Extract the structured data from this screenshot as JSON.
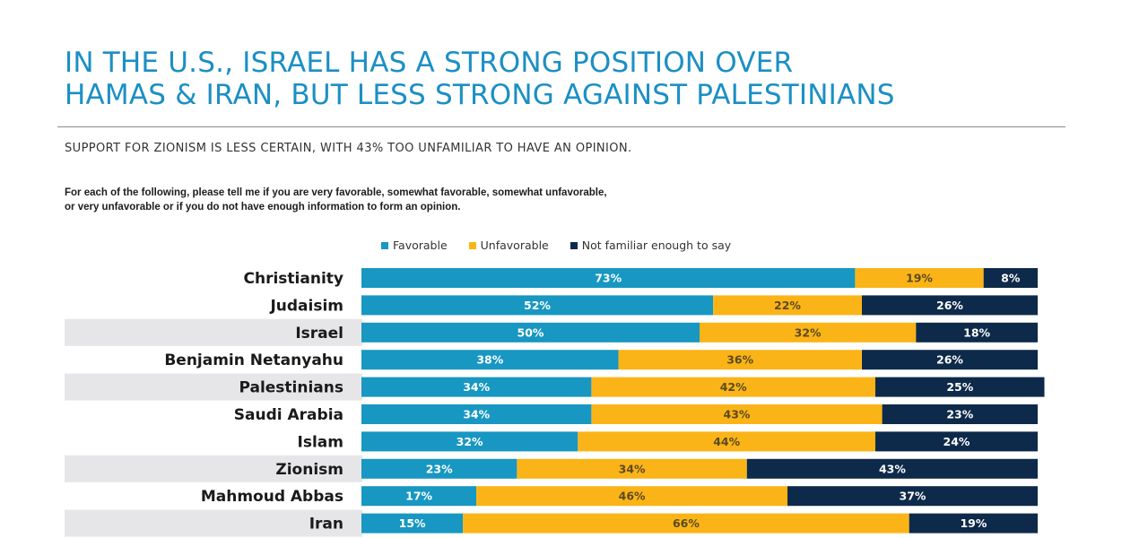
{
  "header": {
    "title_lines": [
      "IN THE U.S., ISRAEL HAS A STRONG POSITION OVER",
      "HAMAS & IRAN, BUT LESS STRONG AGAINST PALESTINIANS"
    ],
    "subtitle": "SUPPORT FOR ZIONISM IS LESS CERTAIN, WITH 43% TOO UNFAMILIAR TO HAVE AN OPINION.",
    "question_lines": [
      "For each of the following, please tell me if you are very favorable, somewhat favorable, somewhat unfavorable,",
      "or very unfavorable or if you do not have enough information to form an opinion."
    ]
  },
  "colors": {
    "title": "#1b8fc4",
    "favorable": "#1797c2",
    "unfavorable": "#fbb417",
    "not_familiar": "#0e2a4a",
    "row_highlight": "#e6e6e8"
  },
  "chart_data": {
    "type": "bar",
    "orientation": "horizontal",
    "stacked": true,
    "normalized_percent": true,
    "title": "IN THE U.S., ISRAEL HAS A STRONG POSITION OVER HAMAS & IRAN, BUT LESS STRONG AGAINST PALESTINIANS",
    "subtitle": "SUPPORT FOR ZIONISM IS LESS CERTAIN, WITH 43% TOO UNFAMILIAR TO HAVE AN OPINION.",
    "xlabel": "",
    "ylabel": "",
    "xlim": [
      0,
      100
    ],
    "grid": false,
    "legend_position": "top-center",
    "categories": [
      "Christianity",
      "Judaisim",
      "Israel",
      "Benjamin Netanyahu",
      "Palestinians",
      "Saudi Arabia",
      "Islam",
      "Zionism",
      "Mahmoud Abbas",
      "Iran"
    ],
    "highlighted_rows": [
      "Israel",
      "Palestinians",
      "Zionism",
      "Iran"
    ],
    "series": [
      {
        "name": "Favorable",
        "color": "#1797c2",
        "label_color": "#ffffff",
        "values": [
          73,
          52,
          50,
          38,
          34,
          34,
          32,
          23,
          17,
          15
        ]
      },
      {
        "name": "Unfavorable",
        "color": "#fbb417",
        "label_color": "#5a4a20",
        "values": [
          19,
          22,
          32,
          36,
          42,
          43,
          44,
          34,
          46,
          66
        ]
      },
      {
        "name": "Not familiar enough to say",
        "color": "#0e2a4a",
        "label_color": "#ffffff",
        "values": [
          8,
          26,
          18,
          26,
          25,
          23,
          24,
          43,
          37,
          19
        ]
      }
    ]
  }
}
